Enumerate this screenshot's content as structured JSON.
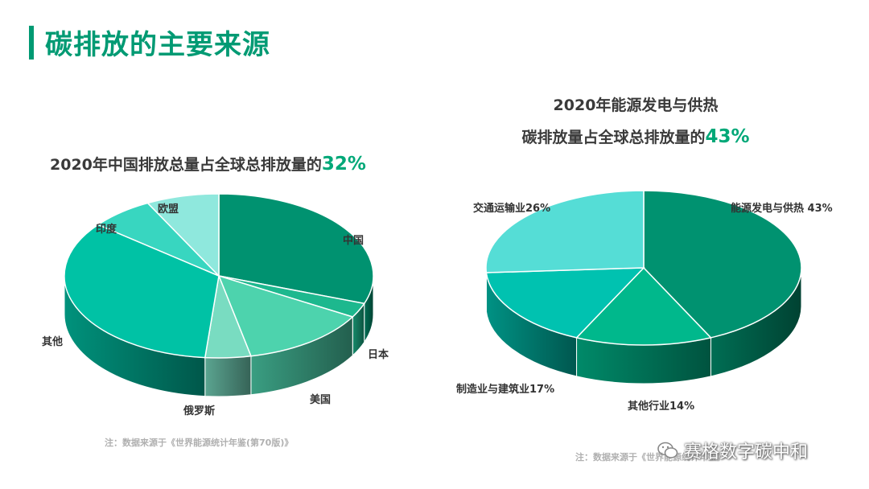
{
  "page": {
    "title": "碳排放的主要来源"
  },
  "charts": {
    "left": {
      "title_prefix": "2020年中国排放总量占全球总排放量的",
      "title_highlight": "32%"
    },
    "right": {
      "title_line1": "2020年能源发电与供热",
      "title_line2_prefix": "碳排放量占全球总排放量的",
      "title_line2_highlight": "43%"
    }
  },
  "chart_data": [
    {
      "type": "pie",
      "title": "2020年中国排放总量占全球总排放量的32%",
      "slices": [
        {
          "label": "中国",
          "value": 32,
          "color": "#009270"
        },
        {
          "label": "日本",
          "value": 3,
          "color": "#1db88e"
        },
        {
          "label": "美国",
          "value": 14,
          "color": "#4dd3ad"
        },
        {
          "label": "俄罗斯",
          "value": 5,
          "color": "#79dcc1"
        },
        {
          "label": "其他",
          "value": 36,
          "color": "#00c2a5"
        },
        {
          "label": "印度",
          "value": 7,
          "color": "#38d6c0"
        },
        {
          "label": "欧盟",
          "value": 8,
          "color": "#8fe8dd"
        }
      ],
      "label_texts": [
        "中国",
        "日本",
        "美国",
        "俄罗斯",
        "其他",
        "印度",
        "欧盟"
      ]
    },
    {
      "type": "pie",
      "title": "2020年能源发电与供热碳排放量占全球总排放量的43%",
      "slices": [
        {
          "label": "能源发电与供热",
          "value": 43,
          "color": "#009270"
        },
        {
          "label": "其他行业",
          "value": 14,
          "color": "#00b88c"
        },
        {
          "label": "制造业与建筑业",
          "value": 17,
          "color": "#00c2b0"
        },
        {
          "label": "交通运输业",
          "value": 26,
          "color": "#55ddd6"
        }
      ],
      "label_texts": [
        "能源发电与供热 43%",
        "其他行业14%",
        "制造业与建筑业17%",
        "交通运输业26%"
      ]
    }
  ],
  "notes": {
    "left": "注：数据来源于《世界能源统计年鉴(第70版)》",
    "right": "注：数据来源于《世界能源统计年鉴》"
  },
  "watermark": {
    "text": "赛格数字碳中和",
    "icon": "wechat-icon"
  }
}
